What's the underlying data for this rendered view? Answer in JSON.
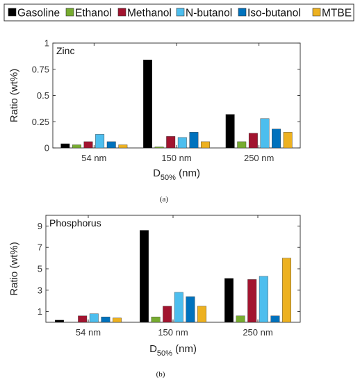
{
  "colors": {
    "Gasoline": "#000000",
    "Ethanol": "#77ac30",
    "Methanol": "#a2142f",
    "N-butanol": "#4dbeee",
    "Iso-butanol": "#0072bd",
    "MTBE": "#edb120"
  },
  "legend": [
    "Gasoline",
    "Ethanol",
    "Methanol",
    "N-butanol",
    "Iso-butanol",
    "MTBE"
  ],
  "chart_data": [
    {
      "type": "bar",
      "title": "Zinc",
      "caption": "(a)",
      "ylabel": "Ratio (wt%)",
      "xlabel_main": "D",
      "xlabel_sub": "50%",
      "xlabel_unit": " (nm)",
      "categories": [
        "54 nm",
        "150 nm",
        "250 nm"
      ],
      "ylim": [
        0,
        1
      ],
      "yticks": [
        0,
        0.25,
        0.5,
        0.75,
        1
      ],
      "ytick_labels": [
        "0",
        "0.25",
        "0.5",
        "0.75",
        "1"
      ],
      "series": [
        {
          "name": "Gasoline",
          "values": [
            0.04,
            0.84,
            0.32
          ]
        },
        {
          "name": "Ethanol",
          "values": [
            0.03,
            0.01,
            0.06
          ]
        },
        {
          "name": "Methanol",
          "values": [
            0.06,
            0.11,
            0.14
          ]
        },
        {
          "name": "N-butanol",
          "values": [
            0.13,
            0.1,
            0.28
          ]
        },
        {
          "name": "Iso-butanol",
          "values": [
            0.06,
            0.15,
            0.18
          ]
        },
        {
          "name": "MTBE",
          "values": [
            0.03,
            0.06,
            0.15
          ]
        }
      ]
    },
    {
      "type": "bar",
      "title": "Phosphorus",
      "caption": "(b)",
      "ylabel": "Ratio (wt%)",
      "xlabel_main": "D",
      "xlabel_sub": "50%",
      "xlabel_unit": " (nm)",
      "categories": [
        "54 nm",
        "150 nm",
        "250 nm"
      ],
      "ylim": [
        0,
        10
      ],
      "yticks": [
        1,
        3,
        5,
        7,
        9
      ],
      "ytick_labels": [
        "1",
        "3",
        "5",
        "7",
        "9"
      ],
      "series": [
        {
          "name": "Gasoline",
          "values": [
            0.2,
            8.6,
            4.1
          ]
        },
        {
          "name": "Ethanol",
          "values": [
            0.0,
            0.5,
            0.6
          ]
        },
        {
          "name": "Methanol",
          "values": [
            0.6,
            1.5,
            4.0
          ]
        },
        {
          "name": "N-butanol",
          "values": [
            0.8,
            2.8,
            4.3
          ]
        },
        {
          "name": "Iso-butanol",
          "values": [
            0.5,
            2.4,
            0.6
          ]
        },
        {
          "name": "MTBE",
          "values": [
            0.4,
            1.5,
            6.0
          ]
        }
      ]
    }
  ]
}
